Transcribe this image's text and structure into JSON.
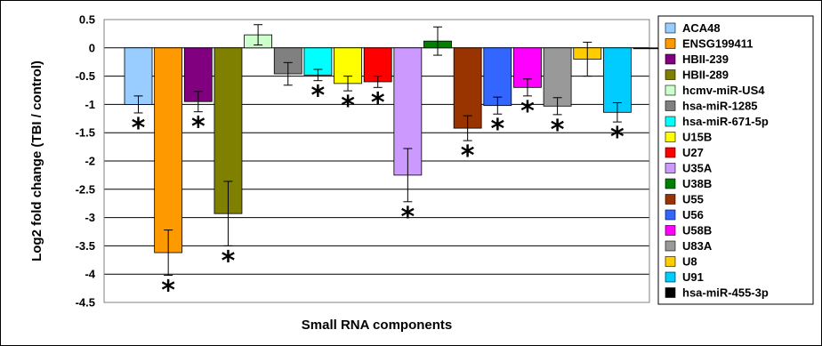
{
  "chart_data": {
    "type": "bar",
    "title": "",
    "xlabel": "Small RNA components",
    "ylabel": "Log2 fold change (TBI / control)",
    "ylim": [
      -4.5,
      0.5
    ],
    "yticks": [
      "0.5",
      "0",
      "-0.5",
      "-1",
      "-1.5",
      "-2",
      "-2.5",
      "-3",
      "-3.5",
      "-4",
      "-4.5"
    ],
    "grid": true,
    "legend_position": "right",
    "significance_marker": "*",
    "series": [
      {
        "name": "ACA48",
        "value": -1.0,
        "error": 0.15,
        "significant": true,
        "color": "#99ccff"
      },
      {
        "name": "ENSG199411",
        "value": -3.62,
        "error": 0.4,
        "significant": true,
        "color": "#ff9900"
      },
      {
        "name": "HBII-239",
        "value": -0.95,
        "error": 0.18,
        "significant": true,
        "color": "#800080"
      },
      {
        "name": "HBII-289",
        "value": -2.93,
        "error": 0.57,
        "significant": true,
        "color": "#808000"
      },
      {
        "name": "hcmv-miR-US4",
        "value": 0.23,
        "error": 0.18,
        "significant": false,
        "color": "#ccffcc"
      },
      {
        "name": "hsa-miR-1285",
        "value": -0.46,
        "error": 0.2,
        "significant": false,
        "color": "#808080"
      },
      {
        "name": "hsa-miR-671-5p",
        "value": -0.48,
        "error": 0.1,
        "significant": true,
        "color": "#00ffff"
      },
      {
        "name": "U15B",
        "value": -0.63,
        "error": 0.13,
        "significant": true,
        "color": "#ffff00"
      },
      {
        "name": "U27",
        "value": -0.6,
        "error": 0.1,
        "significant": true,
        "color": "#ff0000"
      },
      {
        "name": "U35A",
        "value": -2.25,
        "error": 0.47,
        "significant": true,
        "color": "#cc99ff"
      },
      {
        "name": "U38B",
        "value": 0.12,
        "error": 0.25,
        "significant": false,
        "color": "#008000"
      },
      {
        "name": "U55",
        "value": -1.42,
        "error": 0.22,
        "significant": true,
        "color": "#993300"
      },
      {
        "name": "U56",
        "value": -1.02,
        "error": 0.15,
        "significant": true,
        "color": "#3366ff"
      },
      {
        "name": "U58B",
        "value": -0.7,
        "error": 0.15,
        "significant": true,
        "color": "#ff00ff"
      },
      {
        "name": "U83A",
        "value": -1.03,
        "error": 0.15,
        "significant": true,
        "color": "#999999"
      },
      {
        "name": "U8",
        "value": -0.2,
        "error": 0.3,
        "significant": false,
        "color": "#ffcc00"
      },
      {
        "name": "U91",
        "value": -1.14,
        "error": 0.17,
        "significant": true,
        "color": "#00ccff"
      },
      {
        "name": "hsa-miR-455-3p",
        "value": 0.0,
        "error": 0.0,
        "significant": false,
        "color": "#000000"
      }
    ]
  }
}
